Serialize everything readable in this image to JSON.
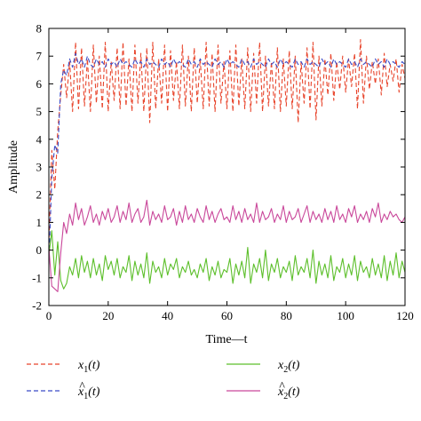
{
  "chart_data": {
    "type": "line",
    "xlabel": "Time—t",
    "ylabel": "Amplitude",
    "xlim": [
      0,
      120
    ],
    "ylim": [
      -2,
      8
    ],
    "xticks": [
      0,
      20,
      40,
      60,
      80,
      100,
      120
    ],
    "yticks": [
      -2,
      -1,
      0,
      1,
      2,
      3,
      4,
      5,
      6,
      7,
      8
    ],
    "grid": false,
    "legend_position": "bottom",
    "series": [
      {
        "name": "x1(t)",
        "name_base": "x",
        "name_sub": "1",
        "name_hat": false,
        "color": "#e8452c",
        "dash": "dashed",
        "x": [
          0,
          1,
          2,
          3,
          4,
          5,
          6,
          7,
          8,
          9,
          10,
          11,
          12,
          13,
          14,
          15,
          16,
          17,
          18,
          19,
          20,
          21,
          22,
          23,
          24,
          25,
          26,
          27,
          28,
          29,
          30,
          31,
          32,
          33,
          34,
          35,
          36,
          37,
          38,
          39,
          40,
          41,
          42,
          43,
          44,
          45,
          46,
          47,
          48,
          49,
          50,
          51,
          52,
          53,
          54,
          55,
          56,
          57,
          58,
          59,
          60,
          61,
          62,
          63,
          64,
          65,
          66,
          67,
          68,
          69,
          70,
          71,
          72,
          73,
          74,
          75,
          76,
          77,
          78,
          79,
          80,
          81,
          82,
          83,
          84,
          85,
          86,
          87,
          88,
          89,
          90,
          91,
          92,
          93,
          94,
          95,
          96,
          97,
          98,
          99,
          100,
          101,
          102,
          103,
          104,
          105,
          106,
          107,
          108,
          109,
          110,
          111,
          112,
          113,
          114,
          115,
          116,
          117,
          118,
          119,
          120
        ],
        "y": [
          0.2,
          3.6,
          2.2,
          4.3,
          5.6,
          6.7,
          5.5,
          6.8,
          5.0,
          7.5,
          5.1,
          7.3,
          5.2,
          6.9,
          5.0,
          7.4,
          5.3,
          7.0,
          5.1,
          7.5,
          5.0,
          6.8,
          5.4,
          7.3,
          5.1,
          7.5,
          5.2,
          6.9,
          5.0,
          7.4,
          5.3,
          7.1,
          5.0,
          7.3,
          4.6,
          7.5,
          5.1,
          6.9,
          5.3,
          7.4,
          5.0,
          7.2,
          5.4,
          6.8,
          5.1,
          7.4,
          5.2,
          7.0,
          5.0,
          7.3,
          5.3,
          6.9,
          5.1,
          7.5,
          5.2,
          7.1,
          5.0,
          7.4,
          5.3,
          6.8,
          5.1,
          7.2,
          5.0,
          7.4,
          5.2,
          6.9,
          5.1,
          7.3,
          5.0,
          7.1,
          5.3,
          7.5,
          5.0,
          7.0,
          5.2,
          6.8,
          5.1,
          7.3,
          5.0,
          6.9,
          5.2,
          7.2,
          5.1,
          7.0,
          4.6,
          6.8,
          5.3,
          7.3,
          5.1,
          7.5,
          4.7,
          7.0,
          5.2,
          6.9,
          5.6,
          7.1,
          5.4,
          6.8,
          5.8,
          7.0,
          5.7,
          6.9,
          5.9,
          7.1,
          5.1,
          7.6,
          5.3,
          7.0,
          5.8,
          6.8,
          6.0,
          6.9,
          5.6,
          7.1,
          5.9,
          6.7,
          6.1,
          6.9,
          5.7,
          6.7,
          6.2
        ]
      },
      {
        "name": "x̂1(t)",
        "name_base": "x",
        "name_sub": "1",
        "name_hat": true,
        "color": "#3a4bc7",
        "dash": "dashed",
        "x": [
          0,
          1,
          2,
          3,
          4,
          5,
          6,
          7,
          8,
          9,
          10,
          11,
          12,
          13,
          14,
          15,
          16,
          17,
          18,
          19,
          20,
          21,
          22,
          23,
          24,
          25,
          26,
          27,
          28,
          29,
          30,
          31,
          32,
          33,
          34,
          35,
          36,
          37,
          38,
          39,
          40,
          41,
          42,
          43,
          44,
          45,
          46,
          47,
          48,
          49,
          50,
          51,
          52,
          53,
          54,
          55,
          56,
          57,
          58,
          59,
          60,
          61,
          62,
          63,
          64,
          65,
          66,
          67,
          68,
          69,
          70,
          71,
          72,
          73,
          74,
          75,
          76,
          77,
          78,
          79,
          80,
          81,
          82,
          83,
          84,
          85,
          86,
          87,
          88,
          89,
          90,
          91,
          92,
          93,
          94,
          95,
          96,
          97,
          98,
          99,
          100,
          101,
          102,
          103,
          104,
          105,
          106,
          107,
          108,
          109,
          110,
          111,
          112,
          113,
          114,
          115,
          116,
          117,
          118,
          119,
          120
        ],
        "y": [
          -0.5,
          2.6,
          3.8,
          3.5,
          6.0,
          6.5,
          6.3,
          6.9,
          6.6,
          7.1,
          6.7,
          6.9,
          6.6,
          7.0,
          6.7,
          6.6,
          6.9,
          6.7,
          6.8,
          6.6,
          6.9,
          6.7,
          6.8,
          6.6,
          6.9,
          6.7,
          6.8,
          6.7,
          6.6,
          6.9,
          6.7,
          6.8,
          6.6,
          6.9,
          6.7,
          6.8,
          6.7,
          6.6,
          6.9,
          6.7,
          6.8,
          6.6,
          6.9,
          6.7,
          6.8,
          6.7,
          6.6,
          6.9,
          6.7,
          6.8,
          6.6,
          6.9,
          6.7,
          6.8,
          6.7,
          6.6,
          6.9,
          6.7,
          6.8,
          6.6,
          6.9,
          6.7,
          6.8,
          6.7,
          6.6,
          6.9,
          6.7,
          6.8,
          6.6,
          6.9,
          6.7,
          6.8,
          6.7,
          6.6,
          6.9,
          6.7,
          6.8,
          6.6,
          6.9,
          6.7,
          6.8,
          6.7,
          6.6,
          6.9,
          6.7,
          6.8,
          6.6,
          6.9,
          6.7,
          6.8,
          6.7,
          6.6,
          6.9,
          6.7,
          6.8,
          6.6,
          6.9,
          6.7,
          6.8,
          6.7,
          6.6,
          6.9,
          6.7,
          6.8,
          6.6,
          6.9,
          6.7,
          6.8,
          6.7,
          6.6,
          6.9,
          6.7,
          6.8,
          6.6,
          6.9,
          6.7,
          6.8,
          6.7,
          6.6,
          6.8,
          6.7
        ]
      },
      {
        "name": "x2(t)",
        "name_base": "x",
        "name_sub": "2",
        "name_hat": false,
        "color": "#5cbf2a",
        "dash": "solid",
        "x": [
          0,
          1,
          2,
          3,
          4,
          5,
          6,
          7,
          8,
          9,
          10,
          11,
          12,
          13,
          14,
          15,
          16,
          17,
          18,
          19,
          20,
          21,
          22,
          23,
          24,
          25,
          26,
          27,
          28,
          29,
          30,
          31,
          32,
          33,
          34,
          35,
          36,
          37,
          38,
          39,
          40,
          41,
          42,
          43,
          44,
          45,
          46,
          47,
          48,
          49,
          50,
          51,
          52,
          53,
          54,
          55,
          56,
          57,
          58,
          59,
          60,
          61,
          62,
          63,
          64,
          65,
          66,
          67,
          68,
          69,
          70,
          71,
          72,
          73,
          74,
          75,
          76,
          77,
          78,
          79,
          80,
          81,
          82,
          83,
          84,
          85,
          86,
          87,
          88,
          89,
          90,
          91,
          92,
          93,
          94,
          95,
          96,
          97,
          98,
          99,
          100,
          101,
          102,
          103,
          104,
          105,
          106,
          107,
          108,
          109,
          110,
          111,
          112,
          113,
          114,
          115,
          116,
          117,
          118,
          119,
          120
        ],
        "y": [
          -0.2,
          0.7,
          -0.9,
          0.3,
          -1.1,
          -1.4,
          -1.2,
          -0.6,
          -0.9,
          -0.3,
          -1.0,
          -0.2,
          -0.8,
          -0.4,
          -1.0,
          -0.3,
          -0.9,
          -0.5,
          -1.1,
          -0.2,
          -0.7,
          -0.4,
          -0.9,
          -0.3,
          -1.0,
          -0.6,
          -0.8,
          -0.2,
          -1.1,
          -0.4,
          -0.9,
          -0.5,
          -1.0,
          -0.1,
          -1.2,
          -0.4,
          -0.8,
          -0.6,
          -1.0,
          -0.3,
          -0.9,
          -0.5,
          -0.7,
          -0.3,
          -1.0,
          -0.6,
          -0.8,
          -0.4,
          -0.9,
          -0.7,
          -1.0,
          -0.5,
          -0.8,
          -0.3,
          -1.1,
          -0.6,
          -0.9,
          -0.4,
          -1.0,
          -0.7,
          -0.8,
          -0.3,
          -1.2,
          -0.5,
          -0.9,
          -0.4,
          -1.0,
          0.1,
          -1.2,
          -0.5,
          -0.8,
          -0.3,
          -1.0,
          0.0,
          -1.1,
          -0.5,
          -0.8,
          -0.3,
          -1.0,
          -0.6,
          -0.8,
          -0.4,
          -1.1,
          -0.2,
          -0.9,
          -0.6,
          -0.8,
          -0.3,
          -1.0,
          0.0,
          -1.2,
          -0.4,
          -0.9,
          -0.5,
          -1.0,
          -0.2,
          -1.1,
          -0.6,
          -0.8,
          -0.3,
          -1.0,
          -0.5,
          -0.9,
          -0.2,
          -1.1,
          -0.4,
          -0.8,
          -0.6,
          -1.0,
          -0.3,
          -0.9,
          -0.5,
          -1.0,
          -0.2,
          -1.1,
          -0.4,
          -0.9,
          -0.1,
          -1.0,
          -0.4,
          -0.8
        ]
      },
      {
        "name": "x̂2(t)",
        "name_base": "x",
        "name_sub": "2",
        "name_hat": true,
        "color": "#c9479a",
        "dash": "solid",
        "x": [
          0,
          1,
          2,
          3,
          4,
          5,
          6,
          7,
          8,
          9,
          10,
          11,
          12,
          13,
          14,
          15,
          16,
          17,
          18,
          19,
          20,
          21,
          22,
          23,
          24,
          25,
          26,
          27,
          28,
          29,
          30,
          31,
          32,
          33,
          34,
          35,
          36,
          37,
          38,
          39,
          40,
          41,
          42,
          43,
          44,
          45,
          46,
          47,
          48,
          49,
          50,
          51,
          52,
          53,
          54,
          55,
          56,
          57,
          58,
          59,
          60,
          61,
          62,
          63,
          64,
          65,
          66,
          67,
          68,
          69,
          70,
          71,
          72,
          73,
          74,
          75,
          76,
          77,
          78,
          79,
          80,
          81,
          82,
          83,
          84,
          85,
          86,
          87,
          88,
          89,
          90,
          91,
          92,
          93,
          94,
          95,
          96,
          97,
          98,
          99,
          100,
          101,
          102,
          103,
          104,
          105,
          106,
          107,
          108,
          109,
          110,
          111,
          112,
          113,
          114,
          115,
          116,
          117,
          118,
          119,
          120
        ],
        "y": [
          0.1,
          -1.3,
          -1.4,
          -1.5,
          -0.1,
          1.0,
          0.6,
          1.3,
          0.9,
          1.7,
          1.1,
          1.5,
          0.9,
          1.2,
          1.6,
          1.0,
          1.3,
          0.9,
          1.4,
          1.1,
          1.5,
          1.0,
          1.2,
          1.6,
          1.0,
          1.4,
          1.1,
          1.7,
          1.0,
          1.3,
          1.5,
          1.0,
          1.2,
          1.8,
          0.9,
          1.4,
          1.1,
          1.3,
          1.0,
          1.6,
          1.1,
          1.2,
          1.5,
          0.9,
          1.4,
          1.0,
          1.6,
          1.1,
          1.3,
          1.0,
          1.5,
          1.2,
          1.0,
          1.6,
          1.1,
          1.4,
          1.0,
          1.3,
          1.5,
          1.1,
          1.2,
          1.0,
          1.6,
          1.1,
          1.4,
          1.0,
          1.5,
          1.1,
          1.3,
          1.0,
          1.7,
          1.0,
          1.4,
          1.1,
          1.2,
          1.5,
          1.0,
          1.3,
          1.1,
          1.6,
          1.0,
          1.4,
          1.1,
          1.2,
          1.5,
          1.0,
          1.3,
          1.6,
          1.0,
          1.4,
          1.1,
          1.3,
          1.0,
          1.5,
          1.1,
          1.4,
          1.0,
          1.6,
          1.1,
          1.3,
          1.0,
          1.5,
          1.2,
          1.6,
          1.0,
          1.3,
          1.1,
          1.4,
          1.0,
          1.5,
          1.2,
          1.7,
          1.0,
          1.3,
          1.1,
          1.4,
          1.2,
          1.3,
          1.1,
          1.0,
          1.2
        ]
      }
    ]
  }
}
